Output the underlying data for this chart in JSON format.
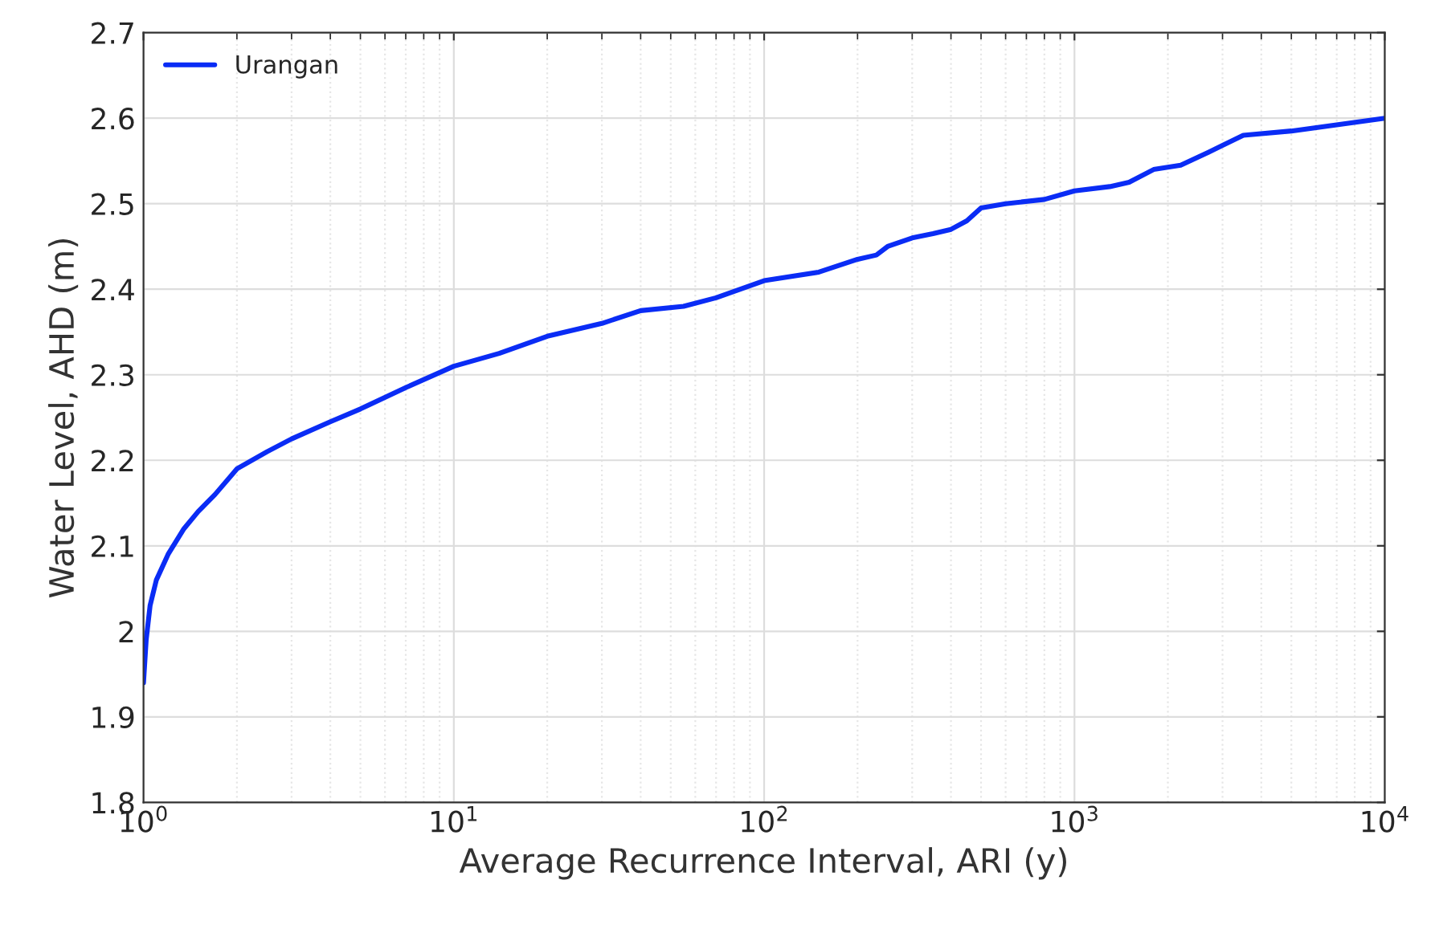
{
  "chart_data": {
    "type": "line",
    "xlabel": "Average Recurrence Interval, ARI (y)",
    "ylabel": "Water Level, AHD (m)",
    "log": "x",
    "grid": true,
    "legend": "top left",
    "xlim": [
      1,
      10000
    ],
    "xticks": [
      {
        "value": 1,
        "label": "10$^{0}$"
      },
      {
        "value": 10,
        "label": "10$^{1}$"
      },
      {
        "value": 100,
        "label": "10$^{2}$"
      },
      {
        "value": 1000,
        "label": "10$^{3}$"
      },
      {
        "value": 10000,
        "label": "10$^{4}$"
      }
    ],
    "ylim": [
      1.8,
      2.7
    ],
    "yticks": [
      1.8,
      1.9,
      2,
      2.1,
      2.2,
      2.3,
      2.4,
      2.5,
      2.6,
      2.7
    ],
    "series": [
      {
        "name": "Urangan",
        "color": "#0a2cf5",
        "x": [
          1.0,
          1.02,
          1.05,
          1.1,
          1.2,
          1.35,
          1.5,
          1.7,
          2,
          2.5,
          3,
          4,
          5,
          7,
          10,
          14,
          20,
          30,
          40,
          55,
          70,
          100,
          150,
          200,
          230,
          250,
          300,
          350,
          400,
          450,
          500,
          600,
          800,
          1000,
          1300,
          1500,
          1800,
          2200,
          2700,
          3500,
          5000,
          10000
        ],
        "values": [
          1.94,
          1.99,
          2.03,
          2.06,
          2.09,
          2.12,
          2.14,
          2.16,
          2.19,
          2.21,
          2.225,
          2.245,
          2.26,
          2.285,
          2.31,
          2.325,
          2.345,
          2.36,
          2.375,
          2.38,
          2.39,
          2.41,
          2.42,
          2.435,
          2.44,
          2.45,
          2.46,
          2.465,
          2.47,
          2.48,
          2.495,
          2.5,
          2.505,
          2.515,
          2.52,
          2.525,
          2.54,
          2.545,
          2.56,
          2.58,
          2.585,
          2.6
        ]
      }
    ]
  }
}
